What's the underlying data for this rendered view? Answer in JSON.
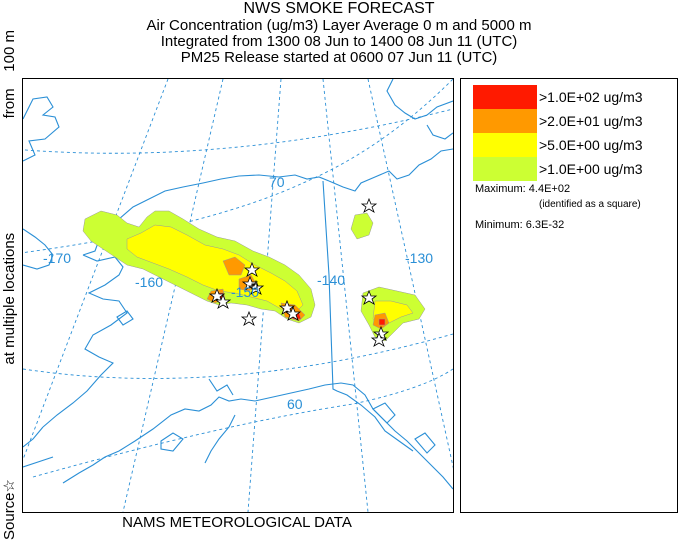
{
  "header": {
    "title": "NWS SMOKE FORECAST",
    "line1": "Air Concentration (ug/m3) Layer Average    0 m and  5000 m",
    "line2": "Integrated from 1300 08 Jun to 1400 08 Jun 11 (UTC)",
    "line3": "PM25 Release started at 0600 07 Jun 11 (UTC)"
  },
  "side_label": {
    "part1": "Source",
    "star": "☆",
    "part2": "at multiple locations",
    "part3": "from",
    "part4": "100 m"
  },
  "map": {
    "graticule_labels": {
      "lon_170": "-170",
      "lon_160": "-160",
      "lon_150": "-150",
      "lon_140": "-140",
      "lon_130": "-130",
      "lat_70": "70",
      "lat_60": "60"
    },
    "coast_color": "#2a8fd6",
    "grid_color": "#2a8fd6"
  },
  "legend": {
    "items": [
      {
        "label": ">1.0E+02 ug/m3",
        "color": "#ff1a00"
      },
      {
        "label": ">2.0E+01 ug/m3",
        "color": "#ff9900"
      },
      {
        "label": ">5.0E+00 ug/m3",
        "color": "#ffff00"
      },
      {
        "label": ">1.0E+00 ug/m3",
        "color": "#ccff33"
      }
    ],
    "maximum_label": "Maximum: 4.4E+02",
    "maximum_note": "(identified as a square)",
    "minimum_label": "Minimum: 6.3E-32"
  },
  "footer": "NAMS METEOROLOGICAL DATA"
}
